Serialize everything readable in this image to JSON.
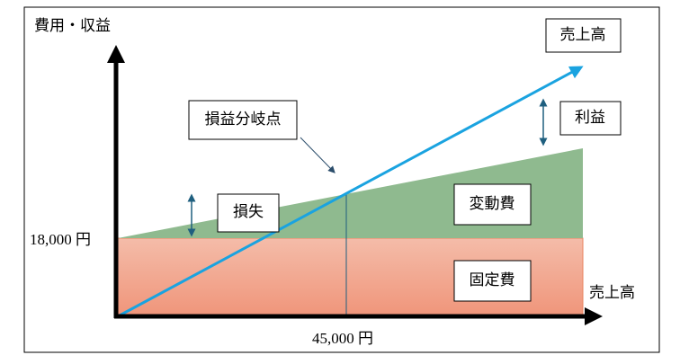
{
  "axis": {
    "y_label": "費用・収益",
    "x_label": "売上高",
    "y_value": "18,000 円",
    "x_value": "45,000 円"
  },
  "labels": {
    "sales": "売上高",
    "profit": "利益",
    "break_even": "損益分岐点",
    "loss": "損失",
    "variable_cost": "変動費",
    "fixed_cost": "固定費"
  }
}
